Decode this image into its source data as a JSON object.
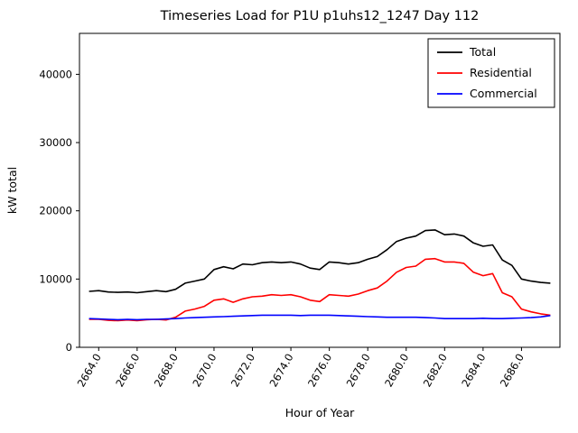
{
  "chart_data": {
    "type": "line",
    "title": "Timeseries Load for P1U p1uhs12_1247  Day 112",
    "xlabel": "Hour of Year",
    "ylabel": "kW total",
    "xlim": [
      2663,
      2688
    ],
    "ylim": [
      0,
      46000
    ],
    "xticks": [
      2664,
      2666,
      2668,
      2670,
      2672,
      2674,
      2676,
      2678,
      2680,
      2682,
      2684,
      2686
    ],
    "xtick_labels": [
      "2664.0",
      "2666.0",
      "2668.0",
      "2670.0",
      "2672.0",
      "2674.0",
      "2676.0",
      "2678.0",
      "2680.0",
      "2682.0",
      "2684.0",
      "2686.0"
    ],
    "yticks": [
      0,
      10000,
      20000,
      30000,
      40000
    ],
    "ytick_labels": [
      "0",
      "10000",
      "20000",
      "30000",
      "40000"
    ],
    "legend_position": "upper right",
    "grid": false,
    "x": [
      2663.5,
      2664,
      2664.5,
      2665,
      2665.5,
      2666,
      2666.5,
      2667,
      2667.5,
      2668,
      2668.5,
      2669,
      2669.5,
      2670,
      2670.5,
      2671,
      2671.5,
      2672,
      2672.5,
      2673,
      2673.5,
      2674,
      2674.5,
      2675,
      2675.5,
      2676,
      2676.5,
      2677,
      2677.5,
      2678,
      2678.5,
      2679,
      2679.5,
      2680,
      2680.5,
      2681,
      2681.5,
      2682,
      2682.5,
      2683,
      2683.5,
      2684,
      2684.5,
      2685,
      2685.5,
      2686,
      2686.5,
      2687,
      2687.5
    ],
    "series": [
      {
        "name": "Total",
        "color": "#000000",
        "values": [
          8200,
          8300,
          8100,
          8050,
          8100,
          8000,
          8150,
          8300,
          8150,
          8500,
          9400,
          9700,
          10000,
          11400,
          11800,
          11500,
          12200,
          12100,
          12400,
          12500,
          12400,
          12500,
          12200,
          11600,
          11400,
          12500,
          12400,
          12200,
          12400,
          12900,
          13300,
          14300,
          15500,
          16000,
          16300,
          17100,
          17200,
          16500,
          16600,
          16300,
          15300,
          14800,
          15000,
          12800,
          12000,
          10000,
          9700,
          9500,
          9400
        ]
      },
      {
        "name": "Residential",
        "color": "#ff0000",
        "values": [
          4100,
          4100,
          3950,
          3900,
          4000,
          3900,
          4050,
          4100,
          4000,
          4400,
          5300,
          5600,
          6000,
          6900,
          7100,
          6600,
          7100,
          7400,
          7500,
          7700,
          7600,
          7700,
          7400,
          6900,
          6700,
          7700,
          7600,
          7500,
          7800,
          8300,
          8700,
          9700,
          11000,
          11700,
          11900,
          12900,
          13000,
          12500,
          12500,
          12300,
          11000,
          10500,
          10800,
          8000,
          7400,
          5600,
          5200,
          4900,
          4700
        ]
      },
      {
        "name": "Commercial",
        "color": "#0000ff",
        "values": [
          4200,
          4150,
          4100,
          4050,
          4100,
          4050,
          4100,
          4100,
          4150,
          4200,
          4300,
          4350,
          4400,
          4450,
          4500,
          4550,
          4600,
          4650,
          4700,
          4700,
          4700,
          4700,
          4650,
          4700,
          4700,
          4700,
          4650,
          4600,
          4550,
          4500,
          4450,
          4400,
          4400,
          4400,
          4400,
          4350,
          4300,
          4200,
          4200,
          4200,
          4200,
          4250,
          4200,
          4200,
          4250,
          4300,
          4350,
          4450,
          4650
        ]
      }
    ]
  },
  "layout_labels": {
    "figure": "matplotlib line chart"
  }
}
